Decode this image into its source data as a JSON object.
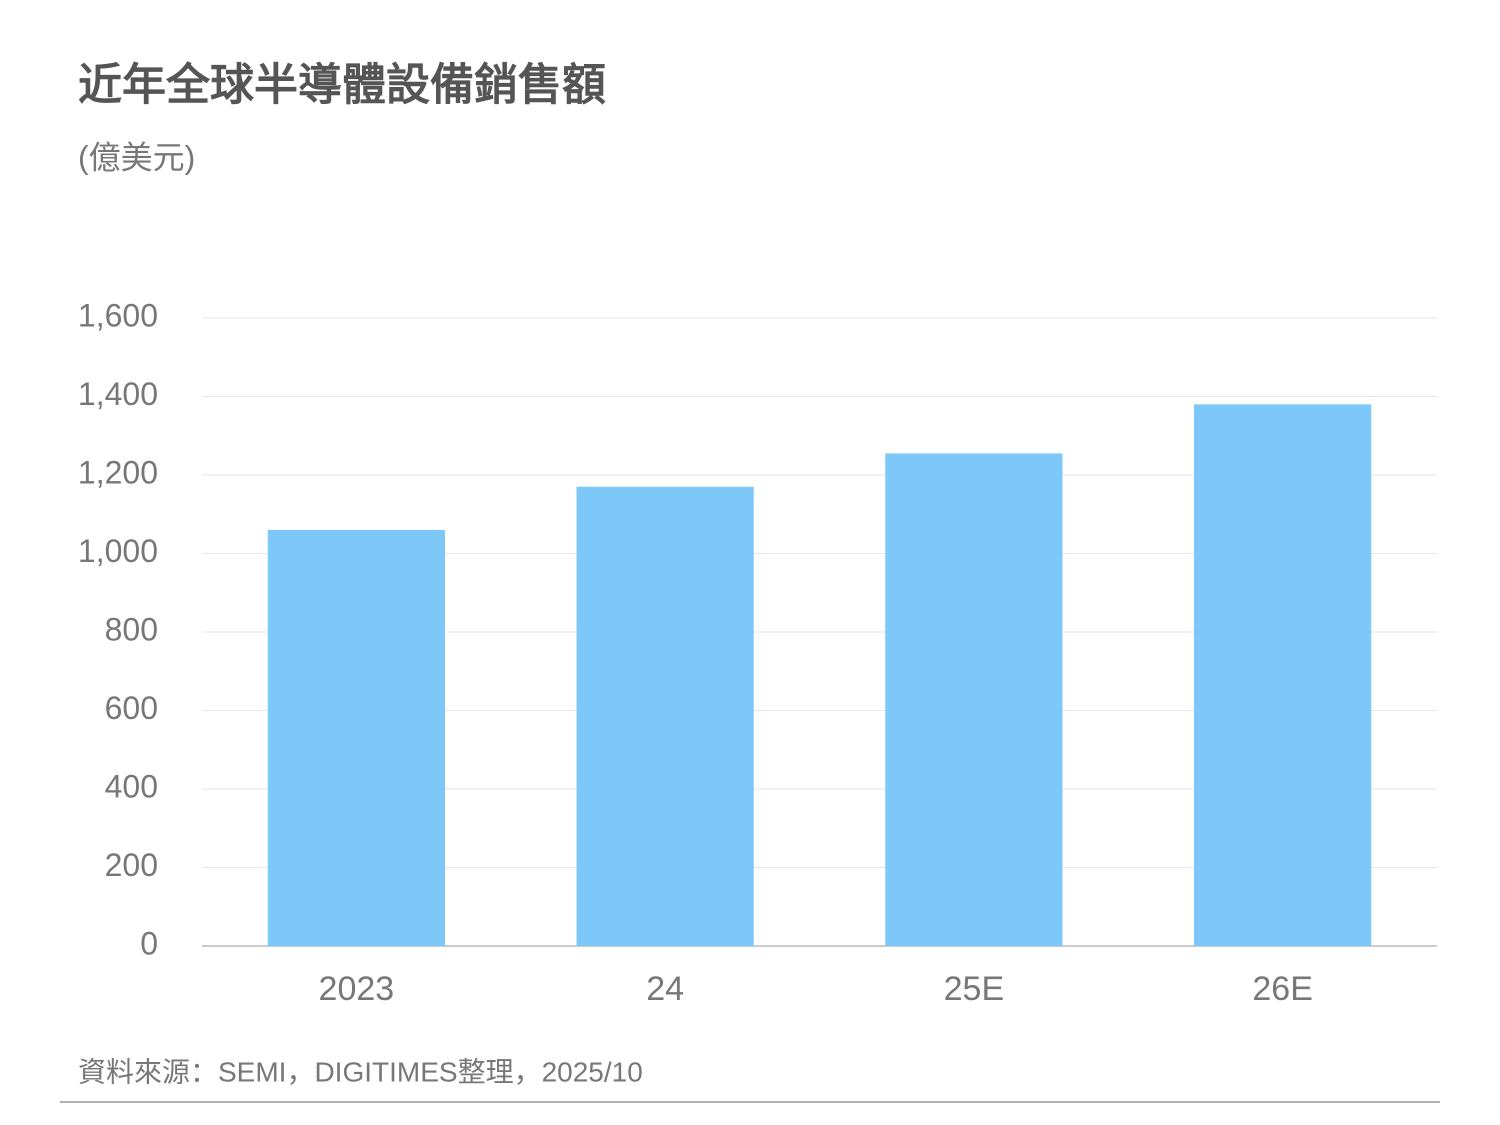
{
  "chart_data": {
    "type": "bar",
    "title": "近年全球半導體設備銷售額",
    "subtitle": "(億美元)",
    "categories": [
      "2023",
      "24",
      "25E",
      "26E"
    ],
    "values": [
      1060,
      1170,
      1255,
      1380
    ],
    "color": "#7dc8f8",
    "ylim": [
      0,
      1600
    ],
    "yticks": [
      0,
      200,
      400,
      600,
      800,
      {
        "value": 1000,
        "label": "1,000"
      },
      {
        "value": 1200,
        "label": "1,200"
      },
      {
        "value": 1400,
        "label": "1,400"
      },
      {
        "value": 1600,
        "label": "1,600"
      }
    ],
    "grid": true,
    "source": "資料來源：SEMI，DIGITIMES整理，2025/10"
  }
}
